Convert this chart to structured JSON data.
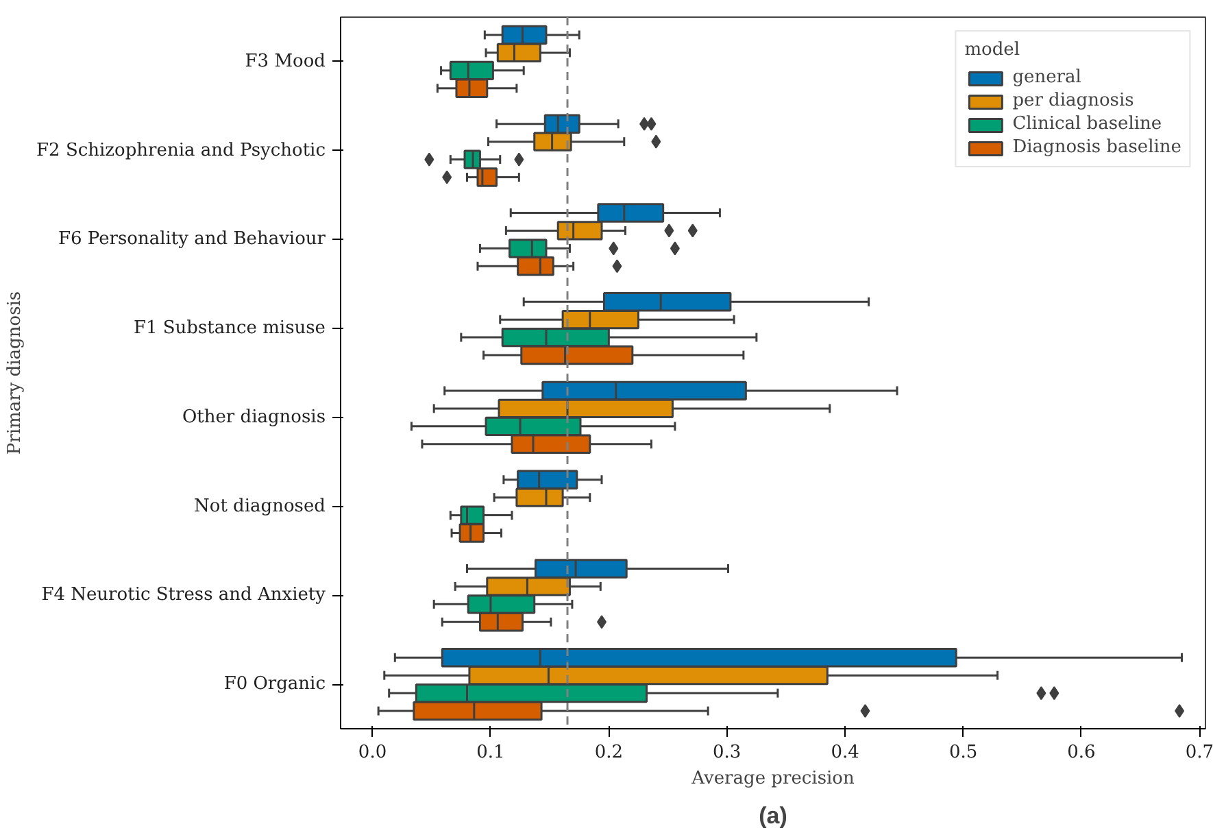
{
  "chart_data": {
    "type": "box",
    "orientation": "horizontal",
    "xlabel": "Average precision",
    "ylabel": "Primary diagnosis",
    "legend_title": "model",
    "categories": [
      "F3 Mood",
      "F2 Schizophrenia and Psychotic",
      "F6 Personality and Behaviour",
      "F1 Substance misuse",
      "Other diagnosis",
      "Not diagnosed",
      "F4 Neurotic Stress and Anxiety",
      "F0 Organic"
    ],
    "xlim": [
      -0.027,
      0.705
    ],
    "xticks": [
      {
        "value": 0,
        "label": "0.0"
      },
      0.1,
      0.2,
      0.3,
      0.4,
      0.5,
      0.6,
      0.7
    ],
    "grid": false,
    "legend": "top right",
    "ref_lines": [
      {
        "axis": "x",
        "value": 0.165,
        "color": "#808080",
        "line_style": "dashed"
      }
    ],
    "annotations": [
      "(a)"
    ],
    "series": [
      {
        "name": "general",
        "color": "#0173b2",
        "boxes": [
          {
            "low": 0.095,
            "q1": 0.11,
            "median": 0.127,
            "q3": 0.147,
            "high": 0.175
          },
          {
            "low": 0.105,
            "q1": 0.146,
            "median": 0.157,
            "q3": 0.175,
            "high": 0.208,
            "outliers": [
              0.23,
              0.236
            ]
          },
          {
            "low": 0.117,
            "q1": 0.191,
            "median": 0.213,
            "q3": 0.246,
            "high": 0.294
          },
          {
            "low": 0.128,
            "q1": 0.196,
            "median": 0.244,
            "q3": 0.303,
            "high": 0.42
          },
          {
            "low": 0.061,
            "q1": 0.144,
            "median": 0.206,
            "q3": 0.316,
            "high": 0.444
          },
          {
            "low": 0.111,
            "q1": 0.123,
            "median": 0.141,
            "q3": 0.173,
            "high": 0.194
          },
          {
            "low": 0.08,
            "q1": 0.138,
            "median": 0.172,
            "q3": 0.215,
            "high": 0.301
          },
          {
            "low": 0.019,
            "q1": 0.059,
            "median": 0.142,
            "q3": 0.494,
            "high": 0.685
          }
        ]
      },
      {
        "name": "per diagnosis",
        "color": "#de8f05",
        "boxes": [
          {
            "low": 0.096,
            "q1": 0.106,
            "median": 0.12,
            "q3": 0.142,
            "high": 0.167
          },
          {
            "low": 0.098,
            "q1": 0.137,
            "median": 0.152,
            "q3": 0.168,
            "high": 0.213,
            "outliers": [
              0.24
            ]
          },
          {
            "low": 0.113,
            "q1": 0.157,
            "median": 0.17,
            "q3": 0.194,
            "high": 0.214,
            "outliers": [
              0.251,
              0.271
            ]
          },
          {
            "low": 0.108,
            "q1": 0.161,
            "median": 0.184,
            "q3": 0.225,
            "high": 0.306
          },
          {
            "low": 0.052,
            "q1": 0.107,
            "median": 0.165,
            "q3": 0.254,
            "high": 0.387
          },
          {
            "low": 0.103,
            "q1": 0.122,
            "median": 0.147,
            "q3": 0.161,
            "high": 0.184
          },
          {
            "low": 0.07,
            "q1": 0.097,
            "median": 0.131,
            "q3": 0.167,
            "high": 0.193
          },
          {
            "low": 0.01,
            "q1": 0.082,
            "median": 0.149,
            "q3": 0.385,
            "high": 0.529
          }
        ]
      },
      {
        "name": "Clinical baseline",
        "color": "#029e73",
        "boxes": [
          {
            "low": 0.058,
            "q1": 0.066,
            "median": 0.081,
            "q3": 0.102,
            "high": 0.128
          },
          {
            "low": 0.066,
            "q1": 0.078,
            "median": 0.085,
            "q3": 0.091,
            "high": 0.108,
            "outliers": [
              0.048,
              0.124
            ]
          },
          {
            "low": 0.091,
            "q1": 0.116,
            "median": 0.135,
            "q3": 0.147,
            "high": 0.167,
            "outliers": [
              0.204,
              0.256
            ]
          },
          {
            "low": 0.075,
            "q1": 0.11,
            "median": 0.147,
            "q3": 0.2,
            "high": 0.325
          },
          {
            "low": 0.033,
            "q1": 0.096,
            "median": 0.125,
            "q3": 0.176,
            "high": 0.256
          },
          {
            "low": 0.066,
            "q1": 0.075,
            "median": 0.08,
            "q3": 0.094,
            "high": 0.118
          },
          {
            "low": 0.052,
            "q1": 0.081,
            "median": 0.1,
            "q3": 0.137,
            "high": 0.169
          },
          {
            "low": 0.014,
            "q1": 0.037,
            "median": 0.08,
            "q3": 0.232,
            "high": 0.343,
            "outliers": [
              0.566,
              0.577
            ]
          }
        ]
      },
      {
        "name": "Diagnosis baseline",
        "color": "#d55e00",
        "boxes": [
          {
            "low": 0.055,
            "q1": 0.071,
            "median": 0.082,
            "q3": 0.097,
            "high": 0.122
          },
          {
            "low": 0.08,
            "q1": 0.089,
            "median": 0.093,
            "q3": 0.105,
            "high": 0.124,
            "outliers": [
              0.063
            ]
          },
          {
            "low": 0.089,
            "q1": 0.123,
            "median": 0.142,
            "q3": 0.153,
            "high": 0.17,
            "outliers": [
              0.207
            ]
          },
          {
            "low": 0.094,
            "q1": 0.126,
            "median": 0.163,
            "q3": 0.22,
            "high": 0.314
          },
          {
            "low": 0.042,
            "q1": 0.118,
            "median": 0.136,
            "q3": 0.184,
            "high": 0.236
          },
          {
            "low": 0.067,
            "q1": 0.074,
            "median": 0.083,
            "q3": 0.094,
            "high": 0.109
          },
          {
            "low": 0.059,
            "q1": 0.091,
            "median": 0.106,
            "q3": 0.127,
            "high": 0.151,
            "outliers": [
              0.194
            ]
          },
          {
            "low": 0.005,
            "q1": 0.035,
            "median": 0.086,
            "q3": 0.143,
            "high": 0.284,
            "outliers": [
              0.417,
              0.683
            ]
          }
        ]
      }
    ]
  }
}
